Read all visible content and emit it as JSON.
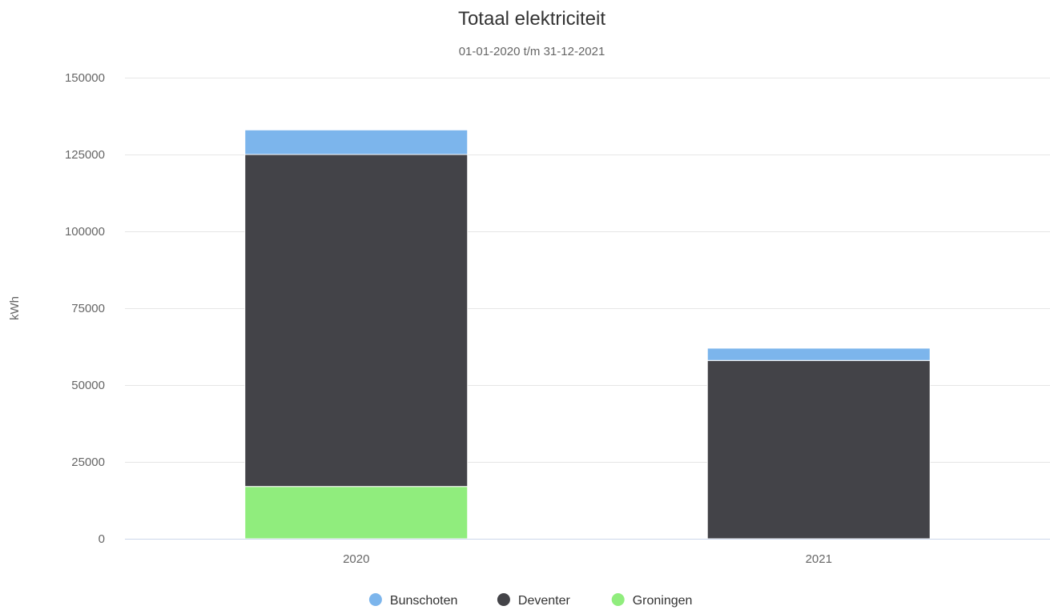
{
  "chart_data": {
    "type": "bar",
    "stacked": true,
    "title": "Totaal elektriciteit",
    "subtitle": "01-01-2020 t/m 31-12-2021",
    "xlabel": "",
    "ylabel": "kWh",
    "categories": [
      "2020",
      "2021"
    ],
    "ylim": [
      0,
      150000
    ],
    "yticks": [
      0,
      25000,
      50000,
      75000,
      100000,
      125000,
      150000
    ],
    "grid": true,
    "legend_position": "bottom-center",
    "series": [
      {
        "name": "Groningen",
        "color": "#90ed7d",
        "values": [
          17000,
          0
        ]
      },
      {
        "name": "Deventer",
        "color": "#434348",
        "values": [
          108000,
          58000
        ]
      },
      {
        "name": "Bunschoten",
        "color": "#7cb5ec",
        "values": [
          8000,
          4000
        ]
      }
    ],
    "legend_order": [
      "Bunschoten",
      "Deventer",
      "Groningen"
    ]
  }
}
